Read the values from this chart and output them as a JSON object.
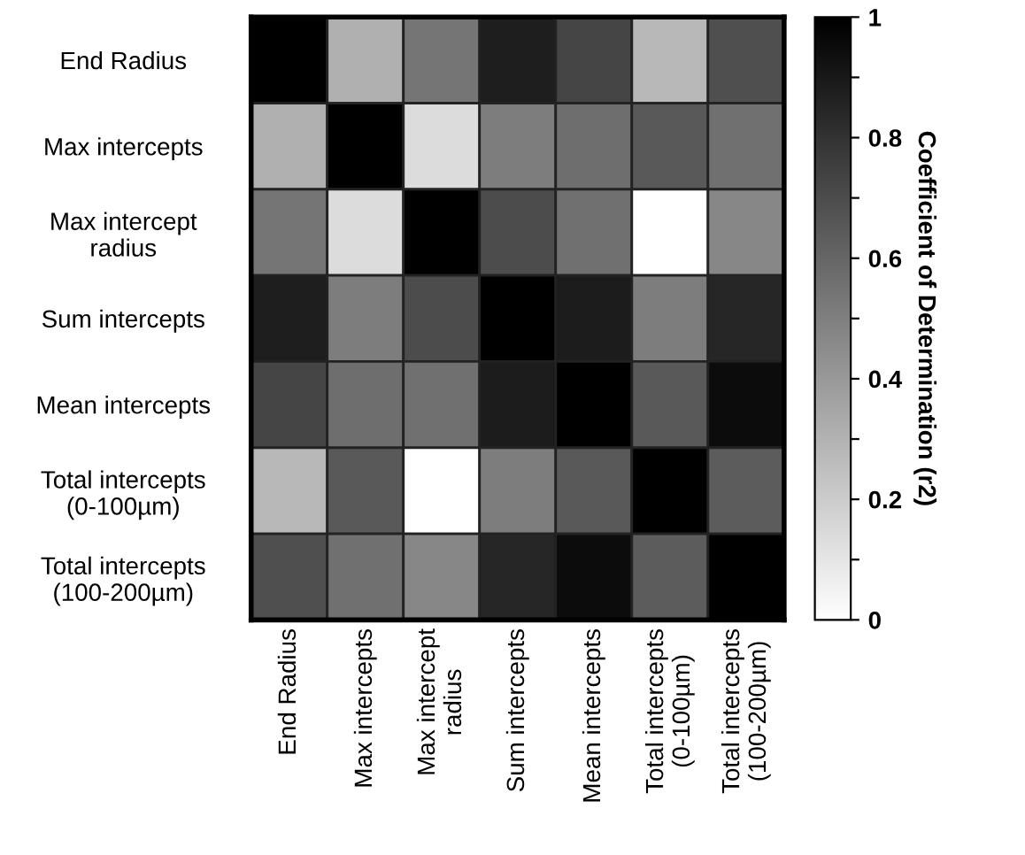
{
  "chart_data": {
    "type": "heatmap",
    "clabel": "Coefficient of Determination (r2)",
    "categories": [
      "End Radius",
      "Max intercepts",
      "Max intercept\nradius",
      "Sum intercepts",
      "Mean intercepts",
      "Total intercepts\n(0-100µm)",
      "Total intercepts\n(100-200µm)"
    ],
    "y_categories": [
      "End Radius",
      "Max intercepts",
      "Max intercept\nradius",
      "Sum intercepts",
      "Mean intercepts",
      "Total intercepts\n(0-100µm)",
      "Total intercepts\n(100-200µm)"
    ],
    "cells": [
      [
        1.0,
        0.31,
        0.54,
        0.88,
        0.73,
        0.28,
        0.69
      ],
      [
        0.31,
        1.0,
        0.14,
        0.51,
        0.57,
        0.65,
        0.56
      ],
      [
        0.54,
        0.14,
        1.0,
        0.7,
        0.56,
        0.0,
        0.47
      ],
      [
        0.88,
        0.51,
        0.7,
        1.0,
        0.89,
        0.51,
        0.85
      ],
      [
        0.73,
        0.57,
        0.56,
        0.89,
        1.0,
        0.65,
        0.95
      ],
      [
        0.28,
        0.65,
        0.0,
        0.51,
        0.65,
        1.0,
        0.64
      ],
      [
        0.69,
        0.56,
        0.47,
        0.85,
        0.95,
        0.64,
        1.0
      ]
    ],
    "clim": [
      0,
      1
    ],
    "cticks": [
      0,
      {
        "value": 0.1,
        "label": null
      },
      0.2,
      {
        "value": 0.3,
        "label": null
      },
      0.4,
      {
        "value": 0.5,
        "label": null
      },
      0.6,
      {
        "value": 0.7,
        "label": null
      },
      0.8,
      {
        "value": 0.9,
        "label": null
      },
      1
    ]
  }
}
